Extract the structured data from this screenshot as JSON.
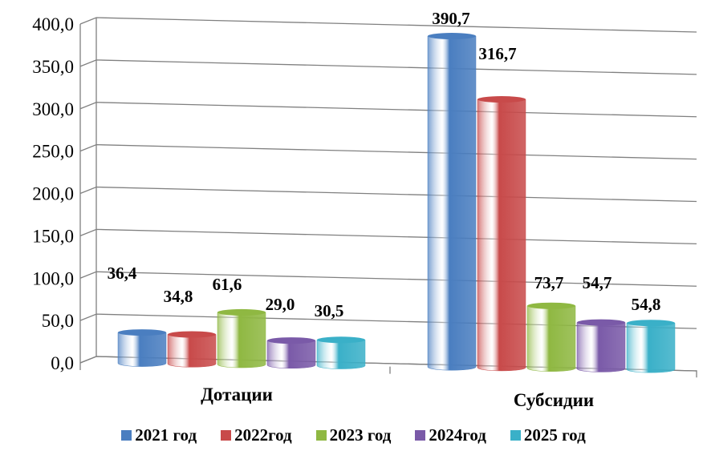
{
  "chart_data": {
    "type": "bar",
    "categories": [
      "Дотации",
      "Субсидии"
    ],
    "series": [
      {
        "name": "2021 год",
        "values": [
          36.4,
          390.7
        ],
        "labels": [
          "36,4",
          "390,7"
        ],
        "color": "#4a7ec0"
      },
      {
        "name": "2022год",
        "values": [
          34.8,
          316.7
        ],
        "labels": [
          "34,8",
          "316,7"
        ],
        "color": "#c84a4a"
      },
      {
        "name": "2023 год",
        "values": [
          61.6,
          73.7
        ],
        "labels": [
          "61,6",
          "73,7"
        ],
        "color": "#8fb842"
      },
      {
        "name": "2024год",
        "values": [
          29.0,
          54.7
        ],
        "labels": [
          "29,0",
          "54,7"
        ],
        "color": "#7a5aa8"
      },
      {
        "name": "2025 год",
        "values": [
          30.5,
          54.8
        ],
        "labels": [
          "30,5",
          "54,8"
        ],
        "color": "#3ab0c8"
      }
    ],
    "yticks": [
      "0,0",
      "50,0",
      "100,0",
      "150,0",
      "200,0",
      "250,0",
      "300,0",
      "350,0",
      "400,0"
    ],
    "ylim": [
      0,
      400
    ],
    "grid": true,
    "legend": "bottom"
  }
}
